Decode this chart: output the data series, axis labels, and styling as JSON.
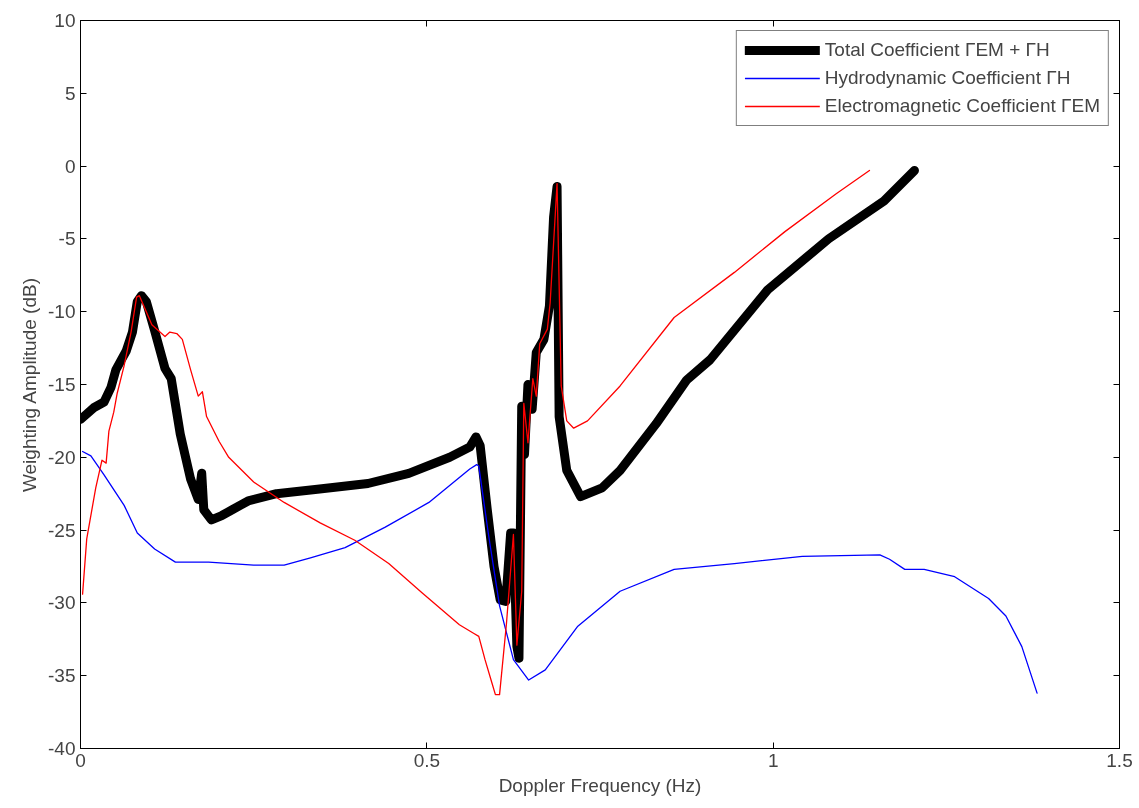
{
  "chart_data": {
    "type": "line",
    "xlabel": "Doppler Frequency (Hz)",
    "ylabel": "Weighting Amplitude (dB)",
    "xlim": [
      0,
      1.5
    ],
    "xticks": [
      0,
      0.5,
      1,
      1.5
    ],
    "ylim": [
      -40,
      10
    ],
    "yticks": [
      -40,
      -35,
      -30,
      -25,
      -20,
      -15,
      -10,
      -5,
      0,
      5,
      10
    ],
    "grid": false,
    "legend": "top right",
    "line_style": "solid",
    "marker": "none",
    "series": [
      {
        "name": "Total Coefficient ΓEM + ΓH",
        "color": "#000000",
        "x": [
          0.0,
          0.019,
          0.034,
          0.044,
          0.051,
          0.066,
          0.075,
          0.082,
          0.088,
          0.095,
          0.107,
          0.122,
          0.131,
          0.144,
          0.159,
          0.17,
          0.175,
          0.178,
          0.189,
          0.204,
          0.219,
          0.242,
          0.283,
          0.342,
          0.415,
          0.474,
          0.533,
          0.562,
          0.571,
          0.577,
          0.587,
          0.597,
          0.606,
          0.614,
          0.621,
          0.625,
          0.63,
          0.633,
          0.637,
          0.641,
          0.646,
          0.652,
          0.658,
          0.669,
          0.677,
          0.683,
          0.688,
          0.691,
          0.702,
          0.722,
          0.753,
          0.779,
          0.831,
          0.875,
          0.909,
          0.992,
          1.08,
          1.16,
          1.204
        ],
        "values": [
          -17.4,
          -16.6,
          -16.2,
          -15.2,
          -14.0,
          -12.7,
          -11.4,
          -9.3,
          -8.9,
          -9.3,
          -11.3,
          -13.9,
          -14.6,
          -18.4,
          -21.5,
          -22.9,
          -21.1,
          -23.6,
          -24.3,
          -24.0,
          -23.6,
          -23.0,
          -22.5,
          -22.2,
          -21.8,
          -21.1,
          -20.0,
          -19.3,
          -18.6,
          -19.2,
          -23.5,
          -27.5,
          -29.8,
          -29.9,
          -25.2,
          -25.2,
          -33.0,
          -33.8,
          -16.5,
          -19.8,
          -15.0,
          -16.7,
          -12.8,
          -11.9,
          -9.6,
          -3.5,
          -1.4,
          -17.2,
          -20.9,
          -22.7,
          -22.1,
          -20.9,
          -17.7,
          -14.7,
          -13.3,
          -8.5,
          -5.0,
          -2.4,
          -0.3
        ]
      },
      {
        "name": "Hydrodynamic Coefficient ΓH",
        "color": "#0000ff",
        "x": [
          0.003,
          0.015,
          0.034,
          0.063,
          0.082,
          0.107,
          0.137,
          0.185,
          0.25,
          0.294,
          0.332,
          0.382,
          0.44,
          0.503,
          0.562,
          0.572,
          0.575,
          0.589,
          0.605,
          0.625,
          0.647,
          0.671,
          0.718,
          0.779,
          0.857,
          0.944,
          1.042,
          1.154,
          1.168,
          1.19,
          1.218,
          1.262,
          1.311,
          1.336,
          1.359,
          1.381
        ],
        "values": [
          -19.6,
          -19.9,
          -21.2,
          -23.3,
          -25.2,
          -26.3,
          -27.2,
          -27.2,
          -27.4,
          -27.4,
          -26.9,
          -26.2,
          -24.8,
          -23.1,
          -20.8,
          -20.5,
          -20.6,
          -25.3,
          -30.2,
          -33.9,
          -35.3,
          -34.6,
          -31.6,
          -29.2,
          -27.7,
          -27.3,
          -26.8,
          -26.7,
          -27.0,
          -27.7,
          -27.7,
          -28.2,
          -29.7,
          -30.9,
          -33.0,
          -36.2
        ]
      },
      {
        "name": "Electromagnetic Coefficient ΓEM",
        "color": "#ff0000",
        "x": [
          0.003,
          0.009,
          0.022,
          0.031,
          0.037,
          0.041,
          0.048,
          0.053,
          0.063,
          0.073,
          0.081,
          0.085,
          0.103,
          0.122,
          0.129,
          0.139,
          0.147,
          0.159,
          0.17,
          0.176,
          0.182,
          0.2,
          0.214,
          0.25,
          0.294,
          0.346,
          0.396,
          0.445,
          0.493,
          0.547,
          0.568,
          0.575,
          0.584,
          0.594,
          0.599,
          0.605,
          0.615,
          0.625,
          0.63,
          0.637,
          0.64,
          0.646,
          0.653,
          0.658,
          0.663,
          0.674,
          0.678,
          0.688,
          0.694,
          0.702,
          0.712,
          0.732,
          0.779,
          0.857,
          0.944,
          1.017,
          1.091,
          1.139
        ],
        "values": [
          -29.4,
          -25.6,
          -22.1,
          -20.2,
          -20.4,
          -18.2,
          -16.9,
          -15.6,
          -13.7,
          -11.4,
          -9.0,
          -8.9,
          -10.9,
          -11.7,
          -11.4,
          -11.5,
          -11.9,
          -14.0,
          -15.8,
          -15.5,
          -17.2,
          -18.9,
          -20.0,
          -21.7,
          -23.1,
          -24.5,
          -25.7,
          -27.3,
          -29.3,
          -31.5,
          -32.1,
          -32.3,
          -33.9,
          -35.5,
          -36.3,
          -36.3,
          -31.4,
          -25.3,
          -32.9,
          -29.2,
          -16.3,
          -19.0,
          -14.6,
          -15.8,
          -12.2,
          -11.2,
          -9.4,
          -1.2,
          -15.1,
          -17.5,
          -18.0,
          -17.5,
          -15.1,
          -10.4,
          -7.3,
          -4.5,
          -1.9,
          -0.3
        ]
      }
    ]
  }
}
